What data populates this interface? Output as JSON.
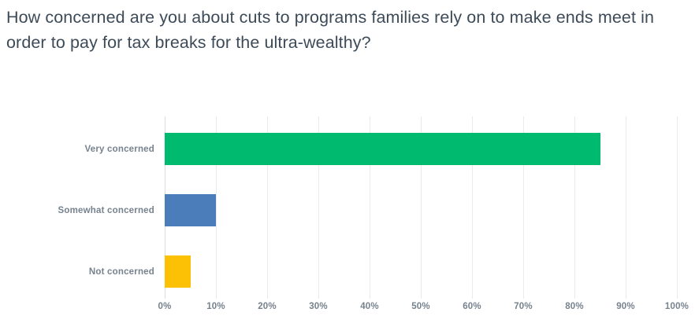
{
  "title": "How concerned are you about cuts to programs families rely on to make ends meet in order to pay for tax breaks for the ultra-wealthy?",
  "colors": {
    "title_text": "#3d4b59",
    "label_text": "#76828e",
    "gridline": "#eaeaea",
    "axis_line": "#dddddd",
    "background": "#ffffff"
  },
  "chart_data": {
    "type": "bar",
    "orientation": "horizontal",
    "title": "How concerned are you about cuts to programs families rely on to make ends meet in order to pay for tax breaks for the ultra-wealthy?",
    "categories": [
      "Very concerned",
      "Somewhat concerned",
      "Not concerned"
    ],
    "values": [
      85,
      10,
      5
    ],
    "unit": "%",
    "bar_colors": [
      "#00ba70",
      "#4b7dba",
      "#fcc004"
    ],
    "xlabel": "",
    "ylabel": "",
    "xlim": [
      0,
      100
    ],
    "x_ticks": [
      "0%",
      "10%",
      "20%",
      "30%",
      "40%",
      "50%",
      "60%",
      "70%",
      "80%",
      "90%",
      "100%"
    ],
    "grid": true,
    "legend": false
  }
}
